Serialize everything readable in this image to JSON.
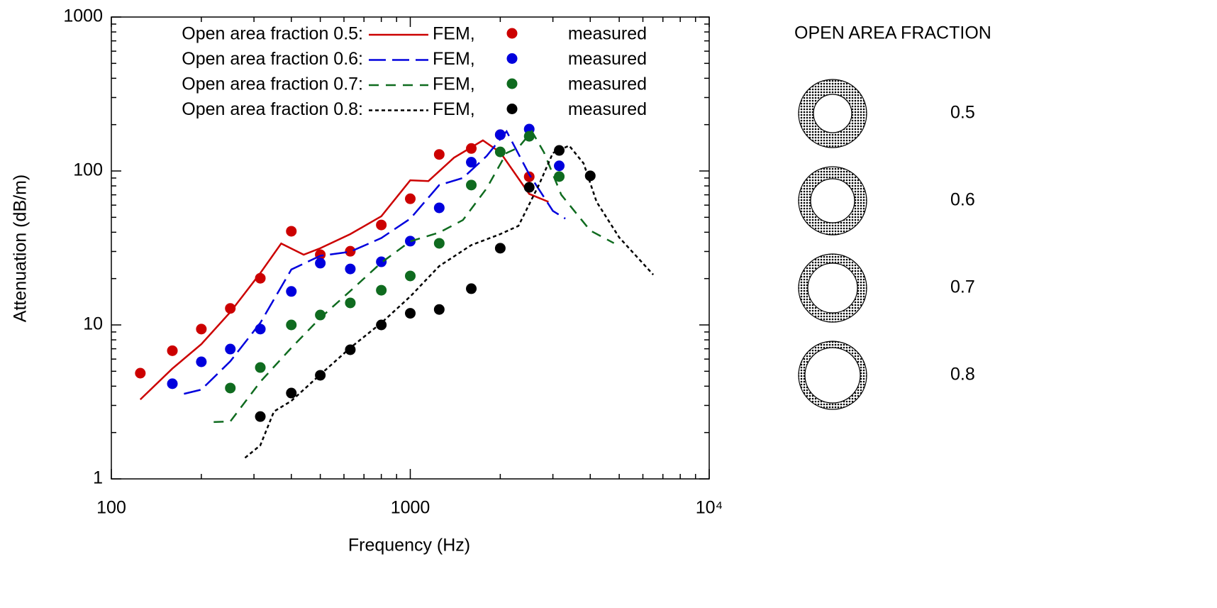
{
  "chart_data": {
    "type": "scatter",
    "x_label": "Frequency (Hz)",
    "y_label": "Attenuation (dB/m)",
    "xlog": true,
    "ylog": true,
    "xlim": [
      100,
      10000
    ],
    "ylim": [
      1,
      1000
    ],
    "xticks": [
      100,
      1000,
      {
        "value": 10000,
        "label": "10⁴"
      }
    ],
    "yticks": [
      1,
      10,
      100,
      1000
    ],
    "legend": "upper left",
    "series": [
      {
        "name": "Open area fraction 0.5:",
        "fem_label": "FEM,",
        "measured_label": "measured",
        "color": "#cc0000",
        "dash": "none",
        "x": [
          125,
          160,
          200,
          250,
          315,
          400,
          500,
          630,
          800,
          1000,
          1250,
          1600,
          2000,
          2500
        ],
        "values": [
          4.86,
          6.8,
          9.4,
          12.8,
          20.1,
          40.6,
          28.6,
          30.1,
          44.6,
          66,
          128,
          140,
          172,
          91.8
        ],
        "fem_x": [
          125,
          160,
          200,
          250,
          315,
          370,
          440,
          500,
          630,
          800,
          1000,
          1150,
          1400,
          1750,
          2000,
          2500,
          2900
        ],
        "fem_y": [
          3.28,
          5.2,
          7.5,
          12.1,
          21.7,
          33.8,
          28.6,
          31.5,
          38.9,
          50.8,
          87,
          86,
          122,
          158,
          132,
          71,
          63
        ]
      },
      {
        "name": "Open area fraction 0.6:",
        "fem_label": "FEM,",
        "measured_label": "measured",
        "color": "#0000dd",
        "dash": "24 9",
        "x": [
          160,
          200,
          250,
          315,
          400,
          500,
          630,
          800,
          1000,
          1250,
          1600,
          2000,
          2500,
          3150
        ],
        "values": [
          4.15,
          5.76,
          6.97,
          9.4,
          16.5,
          25.2,
          23.1,
          25.7,
          35,
          57.6,
          114,
          172,
          187,
          108
        ],
        "fem_x": [
          175,
          200,
          250,
          315,
          400,
          500,
          630,
          800,
          1000,
          1250,
          1500,
          1800,
          2100,
          2500,
          3000,
          3300
        ],
        "fem_y": [
          3.57,
          3.8,
          5.8,
          10.3,
          22.9,
          28.1,
          29.9,
          36.7,
          49,
          81,
          90,
          125,
          181,
          95,
          55,
          49
        ]
      },
      {
        "name": "Open area fraction 0.7:",
        "fem_label": "FEM,",
        "measured_label": "measured",
        "color": "#0f6b1f",
        "dash": "14 10",
        "x": [
          250,
          315,
          400,
          500,
          630,
          800,
          1000,
          1250,
          1600,
          2000,
          2500,
          3150
        ],
        "values": [
          3.89,
          5.29,
          10,
          11.6,
          13.9,
          16.8,
          20.8,
          33.9,
          81,
          133,
          168,
          92
        ],
        "fem_x": [
          220,
          250,
          315,
          400,
          500,
          630,
          800,
          1000,
          1250,
          1500,
          1800,
          2100,
          2300,
          2550,
          2800,
          3200,
          4000,
          4800
        ],
        "fem_y": [
          2.34,
          2.36,
          4.27,
          7.1,
          11.1,
          16.6,
          25.4,
          34.9,
          39.8,
          48,
          77,
          131,
          142,
          181,
          132,
          70,
          41,
          34
        ]
      },
      {
        "name": "Open area fraction 0.8:",
        "fem_label": "FEM,",
        "measured_label": "measured",
        "color": "#000000",
        "dash": "5 4",
        "x": [
          315,
          400,
          500,
          630,
          800,
          1000,
          1250,
          1600,
          2000,
          2500,
          3150,
          4000
        ],
        "values": [
          2.54,
          3.61,
          4.71,
          6.9,
          10,
          11.9,
          12.6,
          17.2,
          31.5,
          78.3,
          136,
          93
        ],
        "fem_x": [
          280,
          315,
          350,
          400,
          500,
          630,
          800,
          1000,
          1250,
          1600,
          2000,
          2300,
          2700,
          3000,
          3400,
          3800,
          4200,
          5000,
          6500
        ],
        "fem_y": [
          1.37,
          1.65,
          2.74,
          3.21,
          4.76,
          7.1,
          10.3,
          15.3,
          24.1,
          33,
          38.9,
          44,
          82,
          131,
          146,
          112,
          63,
          37,
          21.2
        ]
      }
    ],
    "side_panel": {
      "title": "OPEN AREA FRACTION",
      "items": [
        {
          "label": "0.5",
          "color": "#f4a4a4"
        },
        {
          "label": "0.6",
          "color": "#a8a8f0"
        },
        {
          "label": "0.7",
          "color": "#a8eaa8"
        },
        {
          "label": "0.8",
          "color": "#a8a8a8"
        }
      ]
    }
  }
}
